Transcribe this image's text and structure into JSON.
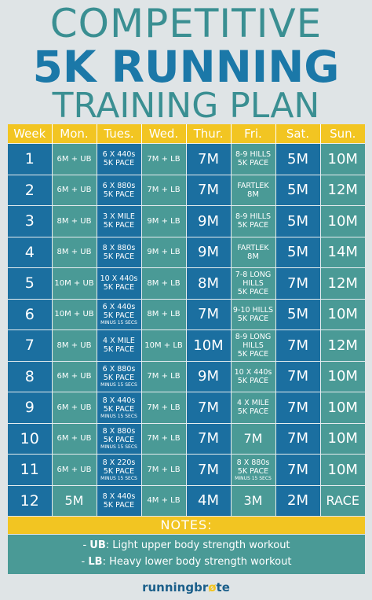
{
  "title": {
    "line1": "COMPETITIVE",
    "line2": "5K RUNNING",
    "line3": "TRAINING PLAN"
  },
  "headers": [
    "Week",
    "Mon.",
    "Tues.",
    "Wed.",
    "Thur.",
    "Fri.",
    "Sat.",
    "Sun."
  ],
  "rows": [
    {
      "week": "1",
      "mon": "6M + UB",
      "tue": [
        "6 X 440s",
        "5K PACE"
      ],
      "tue_note": "",
      "wed": "7M + LB",
      "thu": "7M",
      "fri": [
        "8-9 HILLS",
        "5K PACE"
      ],
      "sat": "5M",
      "sun": "10M"
    },
    {
      "week": "2",
      "mon": "6M + UB",
      "tue": [
        "6 X 880s",
        "5K PACE"
      ],
      "tue_note": "",
      "wed": "7M + LB",
      "thu": "7M",
      "fri": [
        "FARTLEK",
        "8M"
      ],
      "sat": "5M",
      "sun": "12M"
    },
    {
      "week": "3",
      "mon": "8M + UB",
      "tue": [
        "3 X MILE",
        "5K PACE"
      ],
      "tue_note": "",
      "wed": "9M + LB",
      "thu": "9M",
      "fri": [
        "8-9 HILLS",
        "5K PACE"
      ],
      "sat": "5M",
      "sun": "10M"
    },
    {
      "week": "4",
      "mon": "8M + UB",
      "tue": [
        "8 X 880s",
        "5K PACE"
      ],
      "tue_note": "",
      "wed": "9M + LB",
      "thu": "9M",
      "fri": [
        "FARTLEK",
        "8M"
      ],
      "sat": "5M",
      "sun": "14M"
    },
    {
      "week": "5",
      "mon": "10M + UB",
      "tue": [
        "10 X 440s",
        "5K PACE"
      ],
      "tue_note": "",
      "wed": "8M + LB",
      "thu": "8M",
      "fri": [
        "7-8 LONG",
        "HILLS",
        "5K PACE"
      ],
      "sat": "7M",
      "sun": "12M"
    },
    {
      "week": "6",
      "mon": "10M + UB",
      "tue": [
        "6 X 440s",
        "5K PACE"
      ],
      "tue_note": "MINUS 15 SECS",
      "wed": "8M + LB",
      "thu": "7M",
      "fri": [
        "9-10 HILLS",
        "5K PACE"
      ],
      "sat": "5M",
      "sun": "10M"
    },
    {
      "week": "7",
      "mon": "8M + UB",
      "tue": [
        "4 X MILE",
        "5K PACE"
      ],
      "tue_note": "",
      "wed": "10M + LB",
      "thu": "10M",
      "fri": [
        "8-9 LONG",
        "HILLS",
        "5K PACE"
      ],
      "sat": "7M",
      "sun": "12M"
    },
    {
      "week": "8",
      "mon": "6M + UB",
      "tue": [
        "6 X 880s",
        "5K PACE"
      ],
      "tue_note": "MINUS 15 SECS",
      "wed": "7M + LB",
      "thu": "9M",
      "fri": [
        "10 X 440s",
        "5K PACE"
      ],
      "sat": "7M",
      "sun": "10M"
    },
    {
      "week": "9",
      "mon": "6M + UB",
      "tue": [
        "8 X 440s",
        "5K PACE"
      ],
      "tue_note": "MINUS 15 SECS",
      "wed": "7M + LB",
      "thu": "7M",
      "fri": [
        "4 X MILE",
        "5K PACE"
      ],
      "sat": "7M",
      "sun": "10M"
    },
    {
      "week": "10",
      "mon": "6M + UB",
      "tue": [
        "8 X 880s",
        "5K PACE"
      ],
      "tue_note": "MINUS 15 SECS",
      "wed": "7M + LB",
      "thu": "7M",
      "fri": [
        "7M"
      ],
      "sat": "7M",
      "sun": "10M"
    },
    {
      "week": "11",
      "mon": "6M + UB",
      "tue": [
        "8 X 220s",
        "5K PACE"
      ],
      "tue_note": "MINUS 15 SECS",
      "wed": "7M + LB",
      "thu": "7M",
      "fri": [
        "8 X 880s",
        "5K PACE"
      ],
      "fri_note": "MINUS 15 SECS",
      "sat": "7M",
      "sun": "10M"
    },
    {
      "week": "12",
      "mon": "5M",
      "tue": [
        "8 X 440s",
        "5K PACE"
      ],
      "tue_note": "",
      "wed": "4M + LB",
      "thu": "4M",
      "fri": [
        "3M"
      ],
      "sat": "2M",
      "sun": "RACE"
    }
  ],
  "notes": {
    "header": "NOTES:",
    "items": [
      {
        "dash": "-",
        "key": "UB",
        "text": ": Light upper body strength workout"
      },
      {
        "dash": "-",
        "key": "LB",
        "text": ": Heavy lower body strength workout"
      }
    ]
  },
  "logo": {
    "part1": "runningbr",
    "part2": "ø",
    "part3": "te"
  },
  "colors": {
    "blue": "#1b6fa0",
    "teal": "#4a9a96",
    "yellow": "#f2c522",
    "background": "#dfe4e6"
  }
}
